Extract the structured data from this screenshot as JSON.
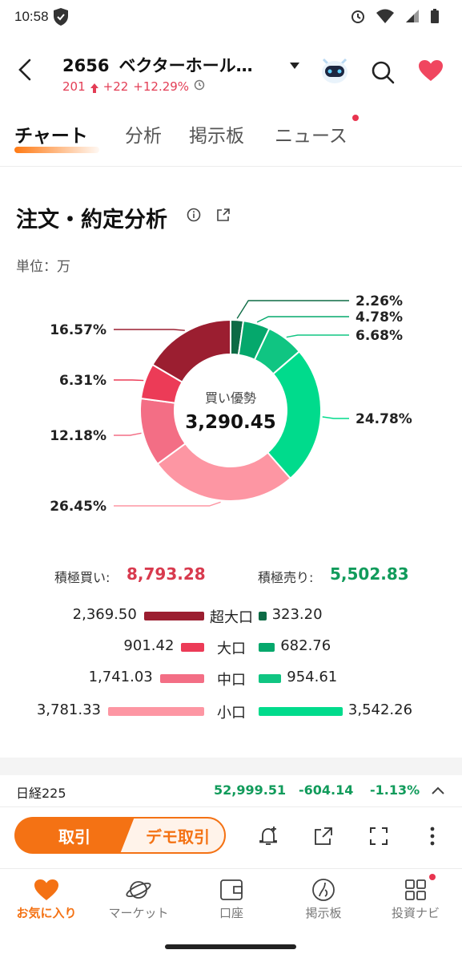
{
  "status_bar": {
    "time": "10:58"
  },
  "header": {
    "stock_code": "2656",
    "stock_name": "ベクターホール…",
    "price": "201",
    "change": "+22",
    "change_pct": "+12.29%"
  },
  "tabs": [
    {
      "label": "チャート",
      "active": true
    },
    {
      "label": "分析",
      "active": false
    },
    {
      "label": "掲示板",
      "active": false
    },
    {
      "label": "ニュース",
      "active": false,
      "has_dot": true
    }
  ],
  "section": {
    "title": "注文・約定分析",
    "unit": "単位：万"
  },
  "chart_data": {
    "type": "pie",
    "variant": "donut",
    "center_label": "買い優勢",
    "center_value": "3,290.45",
    "slices": [
      {
        "label": "超大口 売り",
        "pct": 2.26,
        "pct_text": "2.26%",
        "color": "#0d6b45"
      },
      {
        "label": "大口 売り",
        "pct": 4.78,
        "pct_text": "4.78%",
        "color": "#05a86c"
      },
      {
        "label": "中口 売り",
        "pct": 6.68,
        "pct_text": "6.68%",
        "color": "#10c582"
      },
      {
        "label": "小口 売り",
        "pct": 24.78,
        "pct_text": "24.78%",
        "color": "#00db8c"
      },
      {
        "label": "小口 買い",
        "pct": 26.45,
        "pct_text": "26.45%",
        "color": "#fd96a3"
      },
      {
        "label": "中口 買い",
        "pct": 12.18,
        "pct_text": "12.18%",
        "color": "#f36e85"
      },
      {
        "label": "大口 買い",
        "pct": 6.31,
        "pct_text": "6.31%",
        "color": "#ec3b57"
      },
      {
        "label": "超大口 買い",
        "pct": 16.57,
        "pct_text": "16.57%",
        "color": "#9b1e30"
      }
    ]
  },
  "totals": {
    "buy_label": "積極買い:",
    "buy_value": "8,793.28",
    "sell_label": "積極売り:",
    "sell_value": "5,502.83"
  },
  "flows": [
    {
      "category": "超大口",
      "buy": "2,369.50",
      "buy_num": 2369.5,
      "sell": "323.20",
      "sell_num": 323.2,
      "buy_color": "#9b1e30",
      "sell_color": "#0d6b45"
    },
    {
      "category": "大口",
      "buy": "901.42",
      "buy_num": 901.42,
      "sell": "682.76",
      "sell_num": 682.76,
      "buy_color": "#ec3b57",
      "sell_color": "#05a86c"
    },
    {
      "category": "中口",
      "buy": "1,741.03",
      "buy_num": 1741.03,
      "sell": "954.61",
      "sell_num": 954.61,
      "buy_color": "#f36e85",
      "sell_color": "#10c582"
    },
    {
      "category": "小口",
      "buy": "3,781.33",
      "buy_num": 3781.33,
      "sell": "3,542.26",
      "sell_num": 3542.26,
      "buy_color": "#fd96a3",
      "sell_color": "#00db8c"
    }
  ],
  "ticker": {
    "name": "日経225",
    "value": "52,999.51",
    "change": "-604.14",
    "change_pct": "-1.13%"
  },
  "actions": {
    "trade": "取引",
    "demo_trade": "デモ取引"
  },
  "bottom_nav": [
    {
      "label": "お気に入り",
      "icon": "heart-icon",
      "active": true
    },
    {
      "label": "マーケット",
      "icon": "planet-icon",
      "active": false
    },
    {
      "label": "口座",
      "icon": "wallet-icon",
      "active": false
    },
    {
      "label": "掲示板",
      "icon": "board-icon",
      "active": false
    },
    {
      "label": "投資ナビ",
      "icon": "grid-icon",
      "active": false,
      "has_dot": true
    }
  ]
}
